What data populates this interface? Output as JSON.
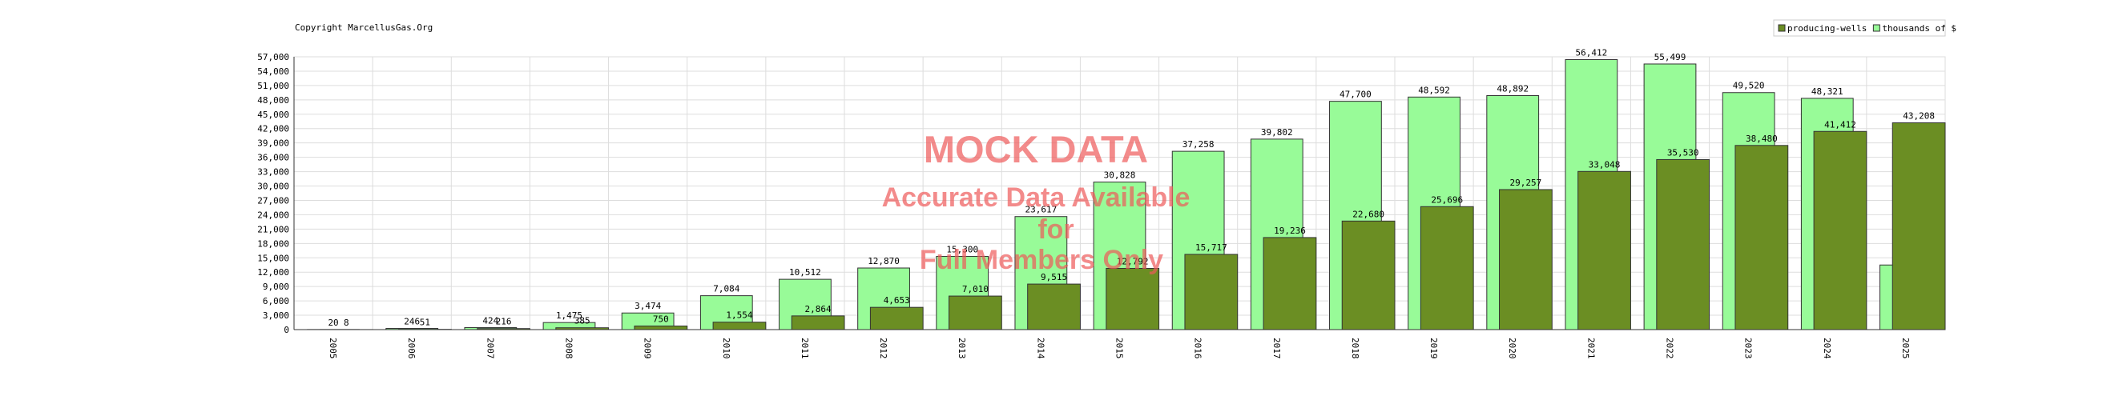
{
  "chart_data": {
    "type": "bar",
    "copyright": "Copyright MarcellusGas.Org",
    "categories": [
      "2005",
      "2006",
      "2007",
      "2008",
      "2009",
      "2010",
      "2011",
      "2012",
      "2013",
      "2014",
      "2015",
      "2016",
      "2017",
      "2018",
      "2019",
      "2020",
      "2021",
      "2022",
      "2023",
      "2024",
      "2025"
    ],
    "series": [
      {
        "name": "producing-wells",
        "color": "#6b8e23",
        "values": [
          8,
          51,
          216,
          385,
          750,
          1554,
          2864,
          4653,
          7010,
          9515,
          12792,
          15717,
          19236,
          22680,
          25696,
          29257,
          33048,
          35530,
          38480,
          41412,
          43208
        ],
        "value_labels": [
          "8",
          "51",
          "216",
          "385",
          "750",
          "1,554",
          "2,864",
          "4,653",
          "7,010",
          "9,515",
          "12,792",
          "15,717",
          "19,236",
          "22,680",
          "25,696",
          "29,257",
          "33,048",
          "35,530",
          "38,480",
          "41,412",
          "43,208"
        ]
      },
      {
        "name": "thousands of $",
        "color": "#98fb98",
        "values": [
          20,
          246,
          424,
          1475,
          3474,
          7084,
          10512,
          12870,
          15300,
          23617,
          30828,
          37258,
          39802,
          47700,
          48592,
          48892,
          56412,
          55499,
          49520,
          48321,
          13500
        ],
        "value_labels": [
          "20",
          "246",
          "424",
          "1,475",
          "3,474",
          "7,084",
          "10,512",
          "12,870",
          "15,300",
          "23,617",
          "30,828",
          "37,258",
          "39,802",
          "47,700",
          "48,592",
          "48,892",
          "56,412",
          "55,499",
          "49,520",
          "48,321",
          null
        ]
      }
    ],
    "ylim": [
      0,
      57000
    ],
    "yticks": [
      0,
      {
        "value": 3000,
        "label": "3,000"
      },
      {
        "value": 6000,
        "label": "6,000"
      },
      {
        "value": 9000,
        "label": "9,000"
      },
      {
        "value": 12000,
        "label": "12,000"
      },
      {
        "value": 15000,
        "label": "15,000"
      },
      {
        "value": 18000,
        "label": "18,000"
      },
      {
        "value": 21000,
        "label": "21,000"
      },
      {
        "value": 24000,
        "label": "24,000"
      },
      {
        "value": 27000,
        "label": "27,000"
      },
      {
        "value": 30000,
        "label": "30,000"
      },
      {
        "value": 33000,
        "label": "33,000"
      },
      {
        "value": 36000,
        "label": "36,000"
      },
      {
        "value": 39000,
        "label": "39,000"
      },
      {
        "value": 42000,
        "label": "42,000"
      },
      {
        "value": 45000,
        "label": "45,000"
      },
      {
        "value": 48000,
        "label": "48,000"
      },
      {
        "value": 51000,
        "label": "51,000"
      },
      {
        "value": 54000,
        "label": "54,000"
      },
      {
        "value": 57000,
        "label": "57,000"
      }
    ],
    "grid": true,
    "legend": "top-right",
    "watermark": [
      "MOCK DATA",
      "Accurate Data Available",
      "for",
      "Full Members Only"
    ]
  }
}
